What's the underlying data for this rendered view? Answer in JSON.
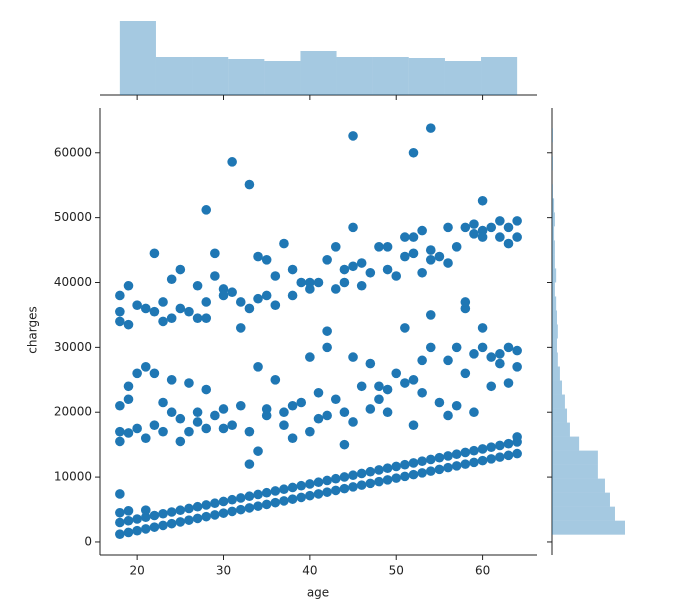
{
  "chart_data": [
    {
      "type": "scatter",
      "xlabel": "age",
      "ylabel": "charges",
      "color": "#1f77b4",
      "xlim": [
        15.7,
        66.3
      ],
      "ylim": [
        -2011,
        66902
      ],
      "xticks": [
        20,
        30,
        40,
        50,
        60
      ],
      "yticks": [
        0,
        10000,
        20000,
        30000,
        40000,
        50000,
        60000
      ],
      "x": [
        18,
        18,
        19,
        19,
        20,
        20,
        21,
        21,
        22,
        22,
        23,
        23,
        24,
        24,
        25,
        25,
        26,
        26,
        27,
        27,
        28,
        28,
        29,
        29,
        30,
        30,
        31,
        31,
        32,
        32,
        33,
        33,
        34,
        34,
        35,
        35,
        36,
        36,
        37,
        37,
        38,
        38,
        39,
        39,
        40,
        40,
        41,
        41,
        42,
        42,
        43,
        43,
        44,
        44,
        45,
        45,
        46,
        46,
        47,
        47,
        48,
        48,
        49,
        49,
        50,
        50,
        51,
        51,
        52,
        52,
        53,
        53,
        54,
        54,
        55,
        55,
        56,
        56,
        57,
        57,
        58,
        58,
        59,
        59,
        60,
        60,
        61,
        61,
        62,
        62,
        63,
        63,
        64,
        64,
        18,
        18,
        19,
        21,
        64,
        18,
        18,
        18,
        19,
        19,
        19,
        20,
        20,
        21,
        21,
        22,
        22,
        23,
        23,
        24,
        24,
        25,
        25,
        26,
        26,
        27,
        27,
        28,
        28,
        29,
        30,
        30,
        31,
        32,
        33,
        33,
        34,
        34,
        35,
        35,
        36,
        37,
        37,
        38,
        38,
        39,
        40,
        40,
        41,
        41,
        42,
        42,
        43,
        44,
        44,
        45,
        45,
        46,
        47,
        47,
        48,
        48,
        49,
        49,
        50,
        51,
        51,
        52,
        52,
        53,
        53,
        54,
        54,
        55,
        56,
        56,
        57,
        57,
        58,
        58,
        59,
        59,
        60,
        60,
        61,
        61,
        62,
        62,
        63,
        63,
        64,
        64,
        18,
        18,
        18,
        19,
        19,
        20,
        21,
        22,
        22,
        23,
        23,
        24,
        24,
        25,
        25,
        26,
        27,
        27,
        28,
        28,
        29,
        29,
        30,
        30,
        31,
        32,
        32,
        33,
        34,
        34,
        35,
        35,
        36,
        36,
        37,
        38,
        38,
        39,
        40,
        40,
        41,
        42,
        42,
        43,
        43,
        44,
        44,
        45,
        45,
        46,
        46,
        47,
        48,
        49,
        49,
        50,
        51,
        51,
        52,
        52,
        53,
        53,
        54,
        54,
        55,
        56,
        56,
        57,
        58,
        58,
        59,
        59,
        60,
        60,
        61,
        62,
        62,
        63,
        63,
        64,
        64,
        31,
        33,
        28,
        45,
        52,
        54,
        60
      ],
      "values": [
        1200,
        3000,
        1470,
        3270,
        1740,
        3540,
        2010,
        3810,
        2280,
        4080,
        2550,
        4350,
        2820,
        4620,
        3090,
        4890,
        3360,
        5160,
        3630,
        5430,
        3900,
        5700,
        4170,
        5970,
        4440,
        6240,
        4710,
        6510,
        4980,
        6780,
        5250,
        7050,
        5520,
        7320,
        5790,
        7590,
        6060,
        7860,
        6330,
        8130,
        6600,
        8400,
        6870,
        8670,
        7140,
        8940,
        7410,
        9210,
        7680,
        9480,
        7950,
        9750,
        8220,
        10020,
        8490,
        10290,
        8760,
        10560,
        9030,
        10830,
        9300,
        11100,
        9570,
        11370,
        9840,
        11640,
        10110,
        11910,
        10380,
        12180,
        10650,
        12450,
        10920,
        12720,
        11190,
        12990,
        11460,
        13260,
        11730,
        13530,
        12000,
        13800,
        12270,
        14070,
        12540,
        14340,
        12810,
        14610,
        13080,
        14880,
        13350,
        15150,
        13620,
        15420,
        4500,
        7400,
        4800,
        4900,
        16200,
        15500,
        17000,
        21000,
        16800,
        22000,
        24000,
        17500,
        26000,
        27000,
        16000,
        18000,
        26000,
        17000,
        21500,
        25000,
        20000,
        15500,
        19000,
        17000,
        24500,
        18500,
        20000,
        23500,
        17500,
        19500,
        20500,
        17500,
        18000,
        21000,
        12000,
        17000,
        14000,
        27000,
        19500,
        20500,
        25000,
        20000,
        18000,
        21000,
        16000,
        21500,
        28500,
        17000,
        23000,
        19000,
        30000,
        19500,
        22000,
        20000,
        15000,
        28500,
        18500,
        24000,
        27500,
        20500,
        24000,
        22000,
        23500,
        20000,
        26000,
        24500,
        33000,
        25000,
        18000,
        28000,
        23000,
        30000,
        35000,
        21500,
        28000,
        19500,
        21000,
        30000,
        36000,
        26000,
        29000,
        20000,
        30000,
        33000,
        28500,
        24000,
        27500,
        29000,
        30000,
        24500,
        29500,
        27000,
        34000,
        38000,
        35500,
        39500,
        33500,
        36500,
        36000,
        44500,
        35500,
        37000,
        34000,
        40500,
        34500,
        42000,
        36000,
        35500,
        39500,
        34500,
        37000,
        34500,
        44500,
        41000,
        39000,
        38000,
        38500,
        33000,
        37000,
        36000,
        44000,
        37500,
        38000,
        43500,
        41000,
        36500,
        46000,
        42000,
        38000,
        40000,
        39000,
        40000,
        40000,
        43500,
        32500,
        45500,
        39000,
        42000,
        40000,
        42500,
        48500,
        43000,
        39500,
        41500,
        45500,
        45500,
        42000,
        41000,
        47000,
        44000,
        44500,
        47000,
        48000,
        41500,
        43500,
        45000,
        44000,
        48500,
        43000,
        45500,
        48500,
        37000,
        47500,
        49000,
        48000,
        47000,
        48500,
        47000,
        49500,
        46000,
        48500,
        49500,
        47000,
        58600,
        55100,
        51200,
        62600,
        60000,
        63800,
        52600
      ]
    },
    {
      "type": "hist",
      "orientation": "vertical",
      "color": "#1f77b4",
      "opacity": 0.4,
      "bins": [
        18,
        22.18,
        26.36,
        30.55,
        34.73,
        38.91,
        43.09,
        47.27,
        51.45,
        55.64,
        59.82,
        64
      ],
      "counts": [
        222,
        114,
        114,
        108,
        102,
        132,
        114,
        114,
        111,
        102,
        114
      ]
    },
    {
      "type": "hist",
      "orientation": "horizontal",
      "color": "#1f77b4",
      "opacity": 0.4,
      "bins": [
        1122,
        3282,
        5443,
        7603,
        9763,
        11924,
        14084,
        16244,
        18404,
        20565,
        22725,
        24885,
        27046,
        29206,
        31366,
        33527,
        35687,
        37847,
        40008,
        42168,
        44328,
        46489,
        48649,
        50809,
        52970,
        55130,
        57290,
        59450,
        61611,
        63771
      ],
      "counts": [
        175,
        151,
        139,
        127,
        110,
        110,
        65,
        43,
        36,
        31,
        24,
        19,
        14,
        12,
        14,
        12,
        10,
        7,
        10,
        7,
        7,
        5,
        7,
        5,
        2,
        0,
        2,
        0,
        2
      ]
    }
  ]
}
